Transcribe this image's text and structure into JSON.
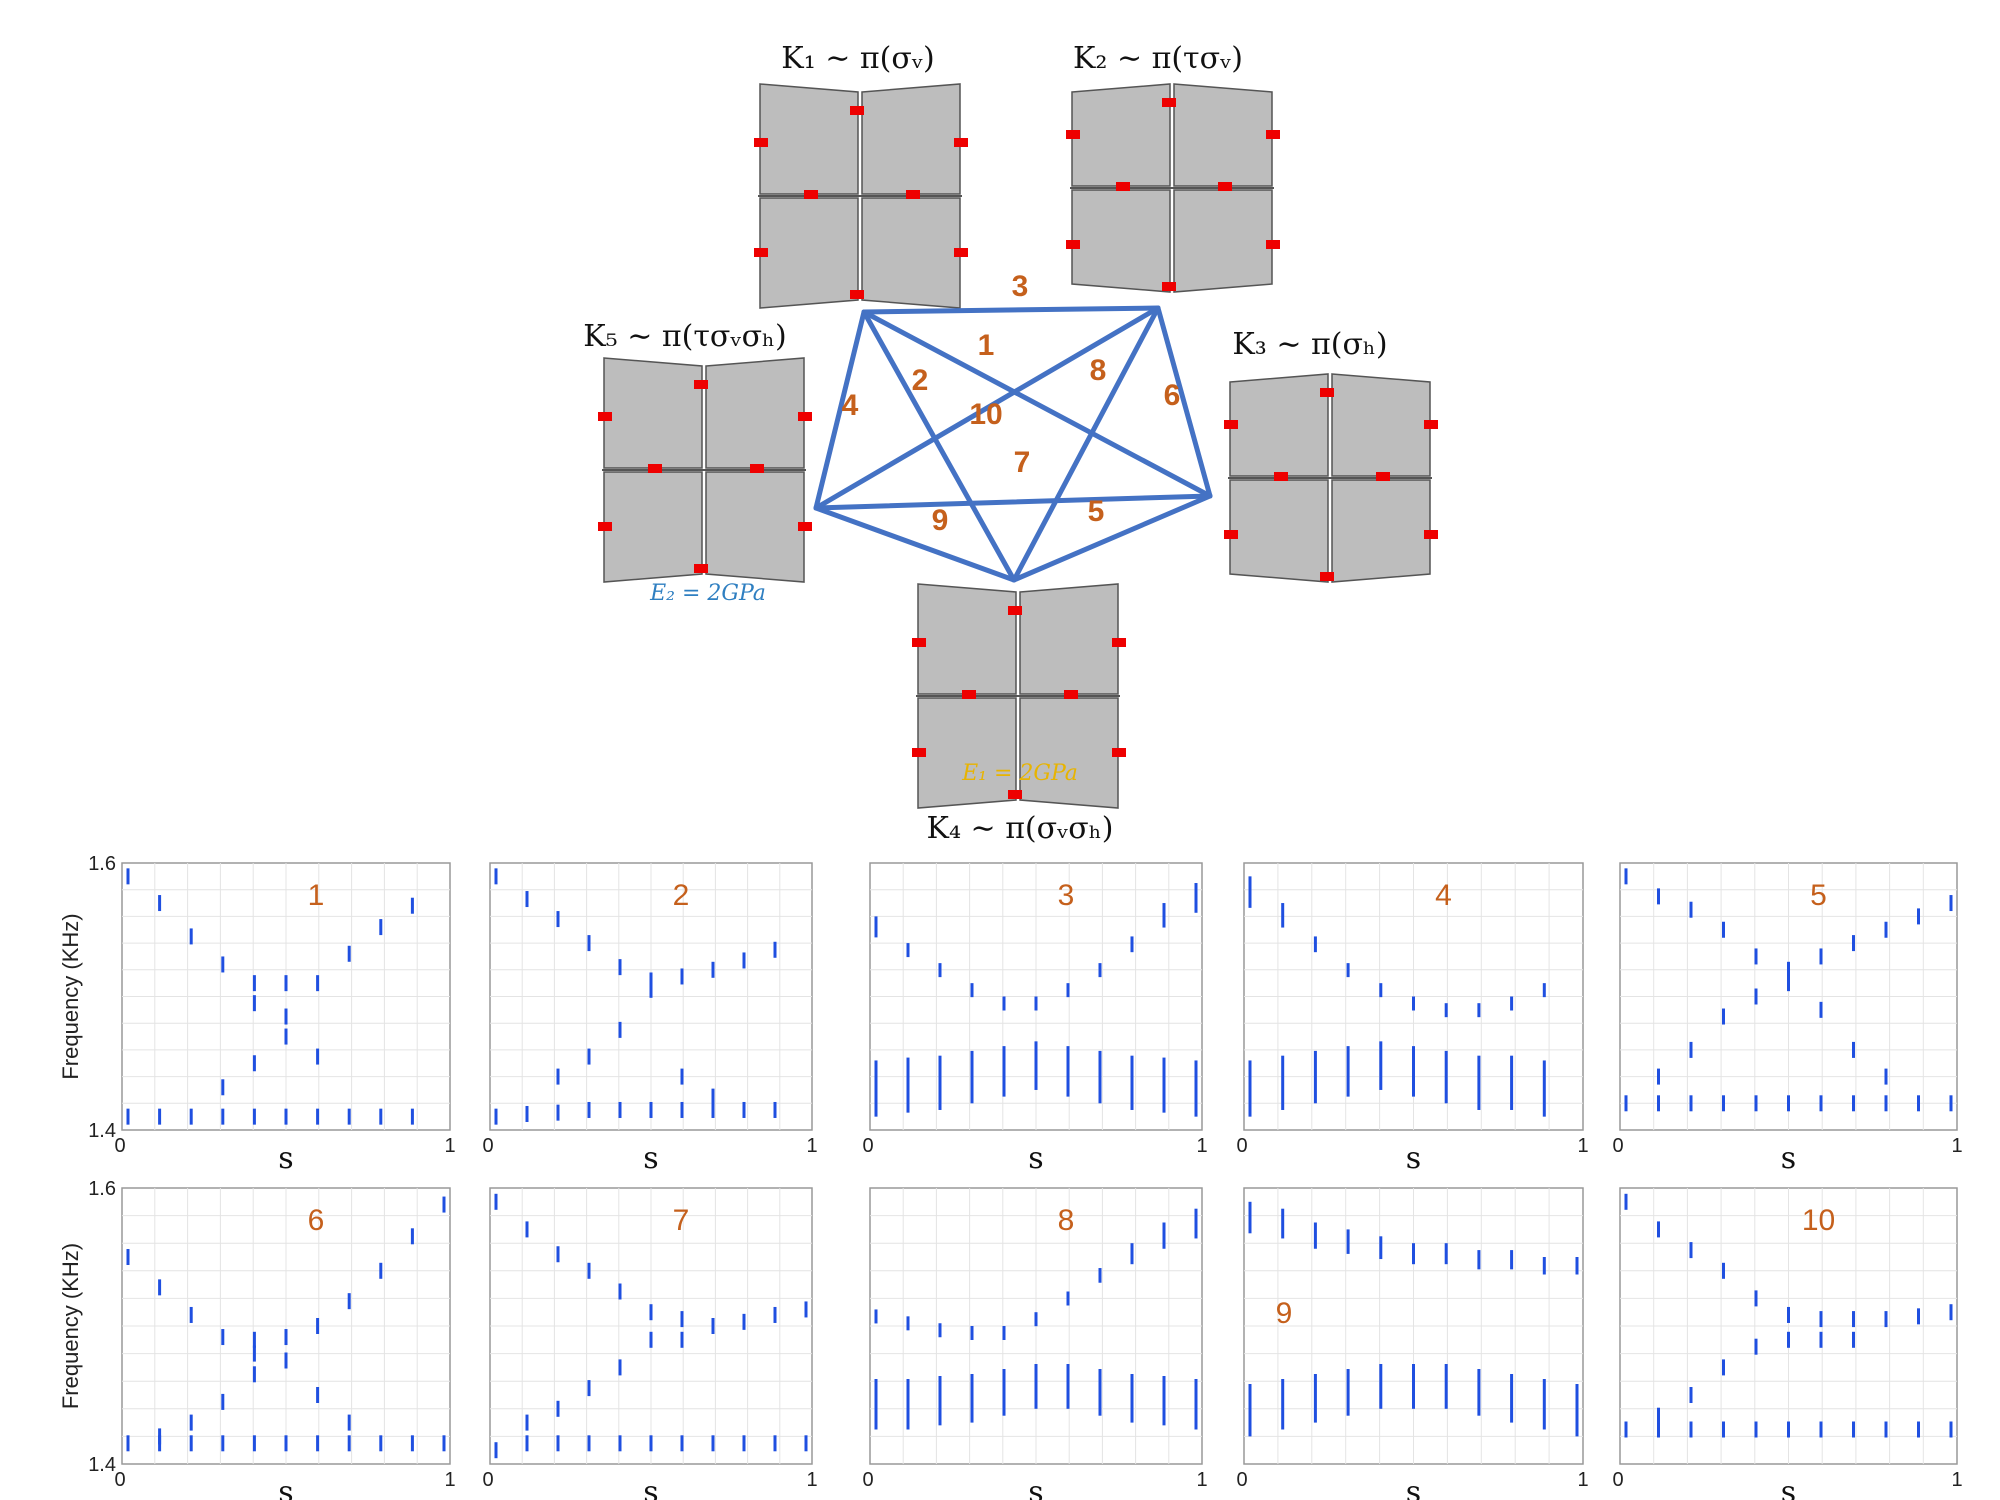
{
  "structures": [
    {
      "id": "K1",
      "label": "K₁ ∼ π(σᵥ)"
    },
    {
      "id": "K2",
      "label": "K₂ ∼ π(τσᵥ)"
    },
    {
      "id": "K3",
      "label": "K₃ ∼ π(σₕ)"
    },
    {
      "id": "K4",
      "label": "K₄ ∼ π(σᵥσₕ)"
    },
    {
      "id": "K5",
      "label": "K₅ ∼ π(τσᵥσₕ)"
    }
  ],
  "moduli": {
    "e2": {
      "text": "E₂ = 2GPa",
      "color": "#2f7fc1"
    },
    "e1": {
      "text": "E₁ = 2GPa",
      "color": "#e8b400"
    }
  },
  "graph_edges": [
    {
      "label": "1",
      "from": "K1",
      "to": "K4"
    },
    {
      "label": "2",
      "from": "K1",
      "to": "K3"
    },
    {
      "label": "3",
      "from": "K1",
      "to": "K2"
    },
    {
      "label": "4",
      "from": "K1",
      "to": "K5"
    },
    {
      "label": "5",
      "from": "K3",
      "to": "K4"
    },
    {
      "label": "6",
      "from": "K2",
      "to": "K3"
    },
    {
      "label": "7",
      "from": "K5",
      "to": "K3"
    },
    {
      "label": "8",
      "from": "K2",
      "to": "K4"
    },
    {
      "label": "9",
      "from": "K5",
      "to": "K4"
    },
    {
      "label": "10",
      "from": "K2",
      "to": "K5"
    }
  ],
  "colors": {
    "edge": "#4472c4",
    "label": "#c5601c",
    "points": "#1f4fe0",
    "pads": "#ee0000"
  },
  "axes": {
    "ylabel": "Frequency (KHz)",
    "xlabel": "s",
    "y_ticks": [
      "1.6",
      "1.4"
    ],
    "x_ticks": [
      "0",
      "1"
    ]
  },
  "chart_data": [
    {
      "type": "scatter",
      "panel": "1",
      "ylim": [
        1.4,
        1.6
      ],
      "xlim": [
        0,
        1
      ],
      "upper": [
        [
          0,
          1.59
        ],
        [
          0.1,
          1.57
        ],
        [
          0.2,
          1.545
        ],
        [
          0.3,
          1.524
        ],
        [
          0.4,
          1.51
        ],
        [
          0.5,
          1.51
        ],
        [
          0.6,
          1.51
        ],
        [
          0.7,
          1.532
        ],
        [
          0.8,
          1.552
        ],
        [
          0.9,
          1.568
        ]
      ],
      "lower": [
        [
          0,
          1.41
        ],
        [
          0.1,
          1.41
        ],
        [
          0.2,
          1.41
        ],
        [
          0.3,
          1.41
        ],
        [
          0.4,
          1.41
        ],
        [
          0.5,
          1.41
        ],
        [
          0.6,
          1.41
        ],
        [
          0.7,
          1.41
        ],
        [
          0.8,
          1.41
        ],
        [
          0.9,
          1.41
        ]
      ],
      "mid": [
        [
          0.3,
          1.432
        ],
        [
          0.4,
          1.45
        ],
        [
          0.5,
          1.47
        ],
        [
          0.6,
          1.455
        ],
        [
          0.4,
          1.495
        ],
        [
          0.5,
          1.485
        ]
      ]
    },
    {
      "type": "scatter",
      "panel": "2",
      "ylim": [
        1.4,
        1.6
      ],
      "xlim": [
        0,
        1
      ],
      "upper": [
        [
          0,
          1.59
        ],
        [
          0.1,
          1.573
        ],
        [
          0.2,
          1.558
        ],
        [
          0.3,
          1.54
        ],
        [
          0.4,
          1.522
        ],
        [
          0.5,
          1.512
        ],
        [
          0.6,
          1.515
        ],
        [
          0.7,
          1.52
        ],
        [
          0.8,
          1.527
        ],
        [
          0.9,
          1.535
        ]
      ],
      "lower": [
        [
          0,
          1.41
        ],
        [
          0.1,
          1.412
        ],
        [
          0.2,
          1.413
        ],
        [
          0.3,
          1.415
        ],
        [
          0.4,
          1.415
        ],
        [
          0.5,
          1.415
        ],
        [
          0.6,
          1.415
        ],
        [
          0.7,
          1.415
        ],
        [
          0.8,
          1.415
        ],
        [
          0.9,
          1.415
        ]
      ],
      "mid": [
        [
          0.2,
          1.44
        ],
        [
          0.3,
          1.455
        ],
        [
          0.4,
          1.475
        ],
        [
          0.5,
          1.505
        ],
        [
          0.6,
          1.44
        ],
        [
          0.7,
          1.425
        ]
      ]
    },
    {
      "type": "scatter",
      "panel": "3",
      "ylim": [
        1.4,
        1.6
      ],
      "xlim": [
        0,
        1
      ],
      "upper": [
        [
          0,
          1.56
        ],
        [
          0.1,
          1.54
        ],
        [
          0.2,
          1.525
        ],
        [
          0.3,
          1.51
        ],
        [
          0.4,
          1.5
        ],
        [
          0.5,
          1.5
        ],
        [
          0.6,
          1.51
        ],
        [
          0.7,
          1.525
        ],
        [
          0.8,
          1.545
        ],
        [
          0.9,
          1.57
        ],
        [
          1,
          1.585
        ]
      ],
      "lower": [
        [
          0,
          1.41
        ],
        [
          0.1,
          1.413
        ],
        [
          0.2,
          1.415
        ],
        [
          0.3,
          1.42
        ],
        [
          0.4,
          1.425
        ],
        [
          0.5,
          1.43
        ],
        [
          0.6,
          1.425
        ],
        [
          0.7,
          1.42
        ],
        [
          0.8,
          1.415
        ],
        [
          0.9,
          1.413
        ],
        [
          1,
          1.41
        ]
      ],
      "mid": []
    },
    {
      "type": "scatter",
      "panel": "4",
      "ylim": [
        1.4,
        1.6
      ],
      "xlim": [
        0,
        1
      ],
      "upper": [
        [
          0,
          1.59
        ],
        [
          0.1,
          1.57
        ],
        [
          0.2,
          1.545
        ],
        [
          0.3,
          1.525
        ],
        [
          0.4,
          1.51
        ],
        [
          0.5,
          1.5
        ],
        [
          0.6,
          1.495
        ],
        [
          0.7,
          1.495
        ],
        [
          0.8,
          1.5
        ],
        [
          0.9,
          1.51
        ]
      ],
      "lower": [
        [
          0,
          1.41
        ],
        [
          0.1,
          1.415
        ],
        [
          0.2,
          1.42
        ],
        [
          0.3,
          1.425
        ],
        [
          0.4,
          1.43
        ],
        [
          0.5,
          1.425
        ],
        [
          0.6,
          1.42
        ],
        [
          0.7,
          1.415
        ],
        [
          0.8,
          1.415
        ],
        [
          0.9,
          1.41
        ]
      ],
      "mid": []
    },
    {
      "type": "scatter",
      "panel": "5",
      "ylim": [
        1.4,
        1.6
      ],
      "xlim": [
        0,
        1
      ],
      "upper": [
        [
          0,
          1.59
        ],
        [
          0.1,
          1.575
        ],
        [
          0.2,
          1.565
        ],
        [
          0.3,
          1.55
        ],
        [
          0.4,
          1.53
        ],
        [
          0.5,
          1.52
        ],
        [
          0.6,
          1.53
        ],
        [
          0.7,
          1.54
        ],
        [
          0.8,
          1.55
        ],
        [
          0.9,
          1.56
        ],
        [
          1,
          1.57
        ]
      ],
      "lower": [
        [
          0,
          1.42
        ],
        [
          0.1,
          1.42
        ],
        [
          0.2,
          1.42
        ],
        [
          0.3,
          1.42
        ],
        [
          0.4,
          1.42
        ],
        [
          0.5,
          1.42
        ],
        [
          0.6,
          1.42
        ],
        [
          0.7,
          1.42
        ],
        [
          0.8,
          1.42
        ],
        [
          0.9,
          1.42
        ],
        [
          1,
          1.42
        ]
      ],
      "mid": [
        [
          0.1,
          1.44
        ],
        [
          0.2,
          1.46
        ],
        [
          0.3,
          1.485
        ],
        [
          0.4,
          1.5
        ],
        [
          0.5,
          1.51
        ],
        [
          0.6,
          1.49
        ],
        [
          0.7,
          1.46
        ],
        [
          0.8,
          1.44
        ]
      ]
    },
    {
      "type": "scatter",
      "panel": "6",
      "ylim": [
        1.4,
        1.6
      ],
      "xlim": [
        0,
        1
      ],
      "upper": [
        [
          0,
          1.55
        ],
        [
          0.1,
          1.528
        ],
        [
          0.2,
          1.508
        ],
        [
          0.3,
          1.492
        ],
        [
          0.4,
          1.49
        ],
        [
          0.5,
          1.492
        ],
        [
          0.6,
          1.5
        ],
        [
          0.7,
          1.518
        ],
        [
          0.8,
          1.54
        ],
        [
          0.9,
          1.565
        ],
        [
          1,
          1.588
        ]
      ],
      "lower": [
        [
          0,
          1.415
        ],
        [
          0.1,
          1.415
        ],
        [
          0.2,
          1.415
        ],
        [
          0.3,
          1.415
        ],
        [
          0.4,
          1.415
        ],
        [
          0.5,
          1.415
        ],
        [
          0.6,
          1.415
        ],
        [
          0.7,
          1.415
        ],
        [
          0.8,
          1.415
        ],
        [
          0.9,
          1.415
        ],
        [
          1,
          1.415
        ]
      ],
      "mid": [
        [
          0.1,
          1.42
        ],
        [
          0.2,
          1.43
        ],
        [
          0.3,
          1.445
        ],
        [
          0.4,
          1.465
        ],
        [
          0.5,
          1.475
        ],
        [
          0.6,
          1.45
        ],
        [
          0.7,
          1.43
        ],
        [
          0.4,
          1.48
        ]
      ]
    },
    {
      "type": "scatter",
      "panel": "7",
      "ylim": [
        1.4,
        1.6
      ],
      "xlim": [
        0,
        1
      ],
      "upper": [
        [
          0,
          1.59
        ],
        [
          0.1,
          1.57
        ],
        [
          0.2,
          1.552
        ],
        [
          0.3,
          1.54
        ],
        [
          0.4,
          1.525
        ],
        [
          0.5,
          1.51
        ],
        [
          0.6,
          1.505
        ],
        [
          0.7,
          1.5
        ],
        [
          0.8,
          1.503
        ],
        [
          0.9,
          1.508
        ],
        [
          1,
          1.512
        ]
      ],
      "lower": [
        [
          0,
          1.41
        ],
        [
          0.1,
          1.415
        ],
        [
          0.2,
          1.415
        ],
        [
          0.3,
          1.415
        ],
        [
          0.4,
          1.415
        ],
        [
          0.5,
          1.415
        ],
        [
          0.6,
          1.415
        ],
        [
          0.7,
          1.415
        ],
        [
          0.8,
          1.415
        ],
        [
          0.9,
          1.415
        ],
        [
          1,
          1.415
        ]
      ],
      "mid": [
        [
          0.1,
          1.43
        ],
        [
          0.2,
          1.44
        ],
        [
          0.3,
          1.455
        ],
        [
          0.4,
          1.47
        ],
        [
          0.5,
          1.49
        ],
        [
          0.6,
          1.49
        ]
      ]
    },
    {
      "type": "scatter",
      "panel": "8",
      "ylim": [
        1.4,
        1.6
      ],
      "xlim": [
        0,
        1
      ],
      "upper": [
        [
          0,
          1.512
        ],
        [
          0.1,
          1.507
        ],
        [
          0.2,
          1.502
        ],
        [
          0.3,
          1.5
        ],
        [
          0.4,
          1.5
        ],
        [
          0.5,
          1.51
        ],
        [
          0.6,
          1.525
        ],
        [
          0.7,
          1.542
        ],
        [
          0.8,
          1.56
        ],
        [
          0.9,
          1.575
        ],
        [
          1,
          1.585
        ]
      ],
      "lower": [
        [
          0,
          1.425
        ],
        [
          0.1,
          1.425
        ],
        [
          0.2,
          1.428
        ],
        [
          0.3,
          1.43
        ],
        [
          0.4,
          1.435
        ],
        [
          0.5,
          1.44
        ],
        [
          0.6,
          1.44
        ],
        [
          0.7,
          1.435
        ],
        [
          0.8,
          1.43
        ],
        [
          0.9,
          1.428
        ],
        [
          1,
          1.425
        ]
      ],
      "mid": []
    },
    {
      "type": "scatter",
      "panel": "9",
      "ylim": [
        1.4,
        1.6
      ],
      "xlim": [
        0,
        1
      ],
      "upper": [
        [
          0,
          1.59
        ],
        [
          0.1,
          1.585
        ],
        [
          0.2,
          1.575
        ],
        [
          0.3,
          1.57
        ],
        [
          0.4,
          1.565
        ],
        [
          0.5,
          1.56
        ],
        [
          0.6,
          1.56
        ],
        [
          0.7,
          1.555
        ],
        [
          0.8,
          1.555
        ],
        [
          0.9,
          1.55
        ],
        [
          1,
          1.55
        ]
      ],
      "lower": [
        [
          0,
          1.42
        ],
        [
          0.1,
          1.425
        ],
        [
          0.2,
          1.43
        ],
        [
          0.3,
          1.435
        ],
        [
          0.4,
          1.44
        ],
        [
          0.5,
          1.44
        ],
        [
          0.6,
          1.44
        ],
        [
          0.7,
          1.435
        ],
        [
          0.8,
          1.43
        ],
        [
          0.9,
          1.425
        ],
        [
          1,
          1.42
        ]
      ],
      "mid": []
    },
    {
      "type": "scatter",
      "panel": "10",
      "ylim": [
        1.4,
        1.6
      ],
      "xlim": [
        0,
        1
      ],
      "upper": [
        [
          0,
          1.59
        ],
        [
          0.1,
          1.57
        ],
        [
          0.2,
          1.555
        ],
        [
          0.3,
          1.54
        ],
        [
          0.4,
          1.52
        ],
        [
          0.5,
          1.508
        ],
        [
          0.6,
          1.505
        ],
        [
          0.7,
          1.505
        ],
        [
          0.8,
          1.505
        ],
        [
          0.9,
          1.507
        ],
        [
          1,
          1.51
        ]
      ],
      "lower": [
        [
          0,
          1.425
        ],
        [
          0.1,
          1.425
        ],
        [
          0.2,
          1.425
        ],
        [
          0.3,
          1.425
        ],
        [
          0.4,
          1.425
        ],
        [
          0.5,
          1.425
        ],
        [
          0.6,
          1.425
        ],
        [
          0.7,
          1.425
        ],
        [
          0.8,
          1.425
        ],
        [
          0.9,
          1.425
        ],
        [
          1,
          1.425
        ]
      ],
      "mid": [
        [
          0.1,
          1.435
        ],
        [
          0.2,
          1.45
        ],
        [
          0.3,
          1.47
        ],
        [
          0.4,
          1.485
        ],
        [
          0.5,
          1.49
        ],
        [
          0.6,
          1.49
        ],
        [
          0.7,
          1.49
        ]
      ]
    }
  ]
}
